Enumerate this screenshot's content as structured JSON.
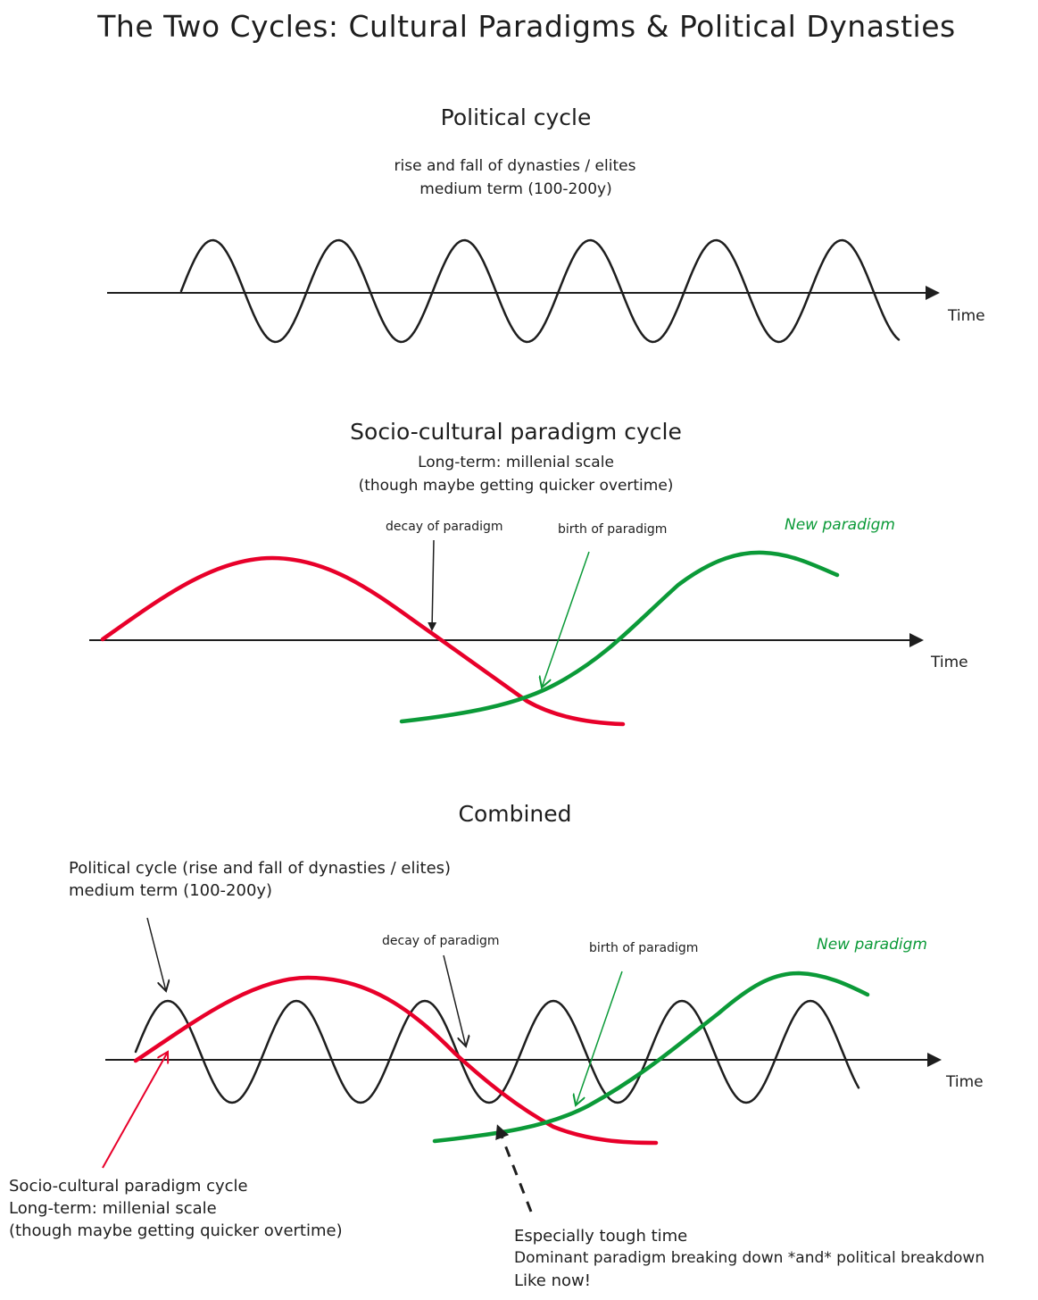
{
  "title": "The Two Cycles: Cultural Paradigms & Political Dynasties",
  "colors": {
    "ink": "#1e1e1e",
    "red": "#e8002a",
    "green": "#0b9a38"
  },
  "political": {
    "heading": "Political cycle",
    "line1": "rise and fall of dynasties / elites",
    "line2": "medium term (100-200y)",
    "axis_label": "Time"
  },
  "cultural": {
    "heading": "Socio-cultural paradigm cycle",
    "line1": "Long-term: millenial scale",
    "line2": "(though maybe getting quicker overtime)",
    "decay_label": "decay of paradigm",
    "birth_label": "birth of paradigm",
    "new_label": "New paradigm",
    "axis_label": "Time"
  },
  "combined": {
    "heading": "Combined",
    "political_note_1": "Political cycle (rise and fall of dynasties / elites)",
    "political_note_2": "medium term (100-200y)",
    "decay_label": "decay of paradigm",
    "birth_label": "birth of paradigm",
    "new_label": "New paradigm",
    "axis_label": "Time",
    "cultural_note_1": "Socio-cultural paradigm cycle",
    "cultural_note_2": "Long-term: millenial scale",
    "cultural_note_3": "(though maybe getting quicker overtime)",
    "tough_1": "Especially tough time",
    "tough_2": "Dominant paradigm breaking down *and* political breakdown",
    "tough_3": "Like now!"
  }
}
